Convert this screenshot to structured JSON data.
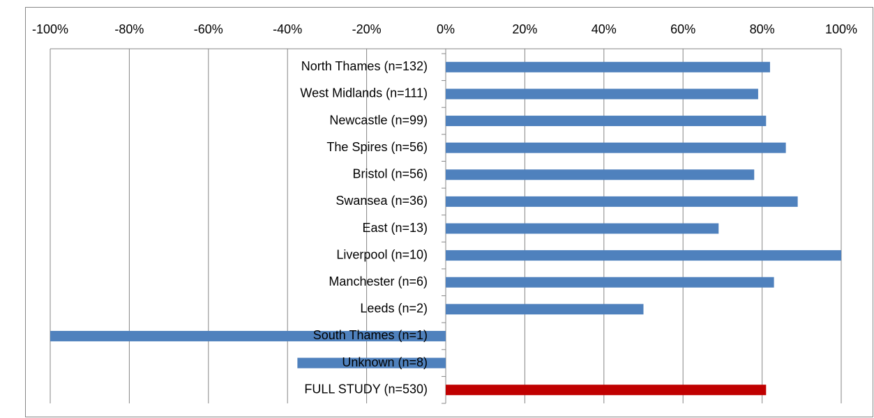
{
  "chart_data": {
    "type": "bar",
    "orientation": "horizontal",
    "categories": [
      "North Thames (n=132)",
      "West Midlands (n=111)",
      "Newcastle (n=99)",
      "The Spires (n=56)",
      "Bristol (n=56)",
      "Swansea (n=36)",
      "East (n=13)",
      "Liverpool (n=10)",
      "Manchester (n=6)",
      "Leeds (n=2)",
      "South Thames (n=1)",
      "Unknown (n=8)",
      "FULL STUDY (n=530)"
    ],
    "values": [
      82,
      79,
      81,
      86,
      78,
      89,
      69,
      100,
      83,
      50,
      -100,
      -37.5,
      81
    ],
    "colors": [
      "#4f81bd",
      "#4f81bd",
      "#4f81bd",
      "#4f81bd",
      "#4f81bd",
      "#4f81bd",
      "#4f81bd",
      "#4f81bd",
      "#4f81bd",
      "#4f81bd",
      "#4f81bd",
      "#4f81bd",
      "#c00000"
    ],
    "xlim": [
      -100,
      100
    ],
    "xticks": [
      {
        "value": -100,
        "label": "-100%"
      },
      {
        "value": -80,
        "label": "-80%"
      },
      {
        "value": -60,
        "label": "-60%"
      },
      {
        "value": -40,
        "label": "-40%"
      },
      {
        "value": -20,
        "label": "-20%"
      },
      {
        "value": 0,
        "label": "0%"
      },
      {
        "value": 20,
        "label": "20%"
      },
      {
        "value": 40,
        "label": "40%"
      },
      {
        "value": 60,
        "label": "60%"
      },
      {
        "value": 80,
        "label": "80%"
      },
      {
        "value": 100,
        "label": "100%"
      }
    ],
    "grid": true
  }
}
